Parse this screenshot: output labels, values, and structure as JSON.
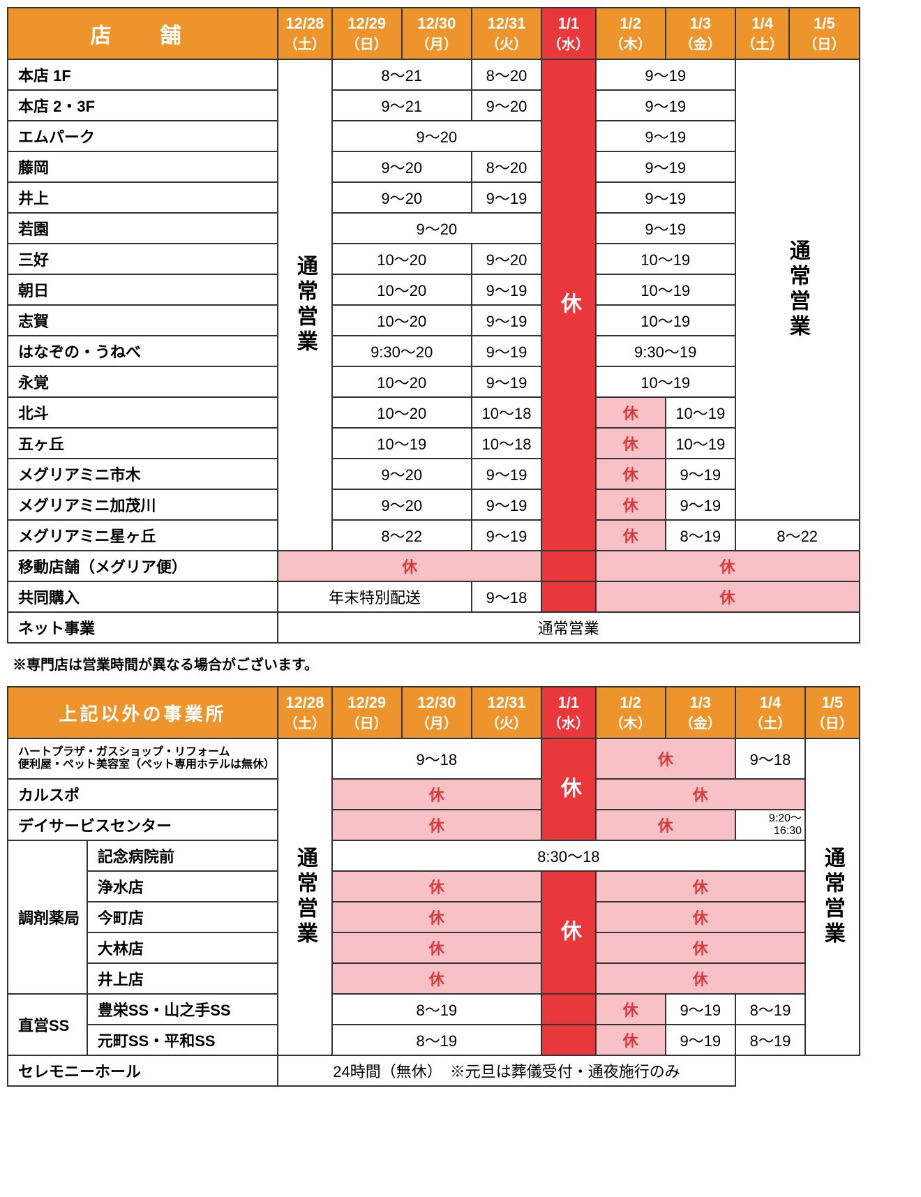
{
  "colors": {
    "header_bg": "#ee942d",
    "header_red": "#e9383b",
    "pink_bg": "#f7c1c5",
    "pink_text": "#d83a3d",
    "border": "#333333",
    "text": "#000000",
    "header_text": "#ffffff"
  },
  "dates": [
    {
      "d": "12/28",
      "w": "（土）",
      "red": false
    },
    {
      "d": "12/29",
      "w": "（日）",
      "red": false
    },
    {
      "d": "12/30",
      "w": "（月）",
      "red": false
    },
    {
      "d": "12/31",
      "w": "（火）",
      "red": false
    },
    {
      "d": "1/1",
      "w": "（水）",
      "red": true
    },
    {
      "d": "1/2",
      "w": "（木）",
      "red": false
    },
    {
      "d": "1/3",
      "w": "（金）",
      "red": false
    },
    {
      "d": "1/4",
      "w": "（土）",
      "red": false
    },
    {
      "d": "1/5",
      "w": "（日）",
      "red": false
    }
  ],
  "table1": {
    "title": "店　舗",
    "vertical_1228": "通常営業",
    "vertical_0104": "通常営業",
    "holiday": "休",
    "rows": [
      {
        "name": "本店 1F",
        "cells": [
          "8～21",
          "",
          "8～20",
          "",
          "9～19",
          "9～19"
        ]
      },
      {
        "name": "本店 2・3F",
        "cells": [
          "9～21",
          "",
          "9～20",
          "",
          "9～19",
          "9～19"
        ]
      },
      {
        "name": "エムパーク",
        "cells": [
          "9～20",
          "9～20",
          "9～20",
          "",
          "9～19",
          "9～19"
        ]
      },
      {
        "name": "藤岡",
        "cells": [
          "9～20",
          "",
          "8～20",
          "",
          "9～19",
          "9～19"
        ]
      },
      {
        "name": "井上",
        "cells": [
          "9～20",
          "",
          "9～19",
          "",
          "9～19",
          "9～19"
        ]
      },
      {
        "name": "若園",
        "cells": [
          "9～20",
          "9～20",
          "9～20",
          "",
          "9～19",
          "9～19"
        ]
      },
      {
        "name": "三好",
        "cells": [
          "10～20",
          "",
          "9～20",
          "",
          "10～19",
          "10～19"
        ]
      },
      {
        "name": "朝日",
        "cells": [
          "10～20",
          "",
          "9～19",
          "",
          "10～19",
          "10～19"
        ]
      },
      {
        "name": "志賀",
        "cells": [
          "10～20",
          "",
          "9～19",
          "",
          "10～19",
          "10～19"
        ]
      },
      {
        "name": "はなぞの・うねべ",
        "cells": [
          "9:30～20",
          "",
          "9～19",
          "",
          "9:30～19",
          "9:30～19"
        ]
      },
      {
        "name": "永覚",
        "cells": [
          "10～20",
          "",
          "9～19",
          "",
          "10～19",
          "10～19"
        ]
      },
      {
        "name": "北斗",
        "cells": [
          "10～20",
          "",
          "10～18",
          "",
          "休",
          "10～19"
        ]
      },
      {
        "name": "五ヶ丘",
        "cells": [
          "10～19",
          "",
          "10～18",
          "",
          "休",
          "10～19"
        ]
      },
      {
        "name": "メグリアミニ市木",
        "cells": [
          "9～20",
          "",
          "9～19",
          "",
          "休",
          "9～19"
        ]
      },
      {
        "name": "メグリアミニ加茂川",
        "cells": [
          "9～20",
          "",
          "9～19",
          "",
          "休",
          "9～19"
        ]
      },
      {
        "name": "メグリアミニ星ヶ丘",
        "cells": [
          "8～22",
          "",
          "9～19",
          "",
          "休",
          "8～19",
          "8～22",
          "8～22"
        ]
      }
    ],
    "mobile": {
      "name": "移動店舗（メグリア便）",
      "left": "休",
      "right": "休"
    },
    "kyodo": {
      "name": "共同購入",
      "left": "年末特別配送",
      "mid": "9～18",
      "right": "休"
    },
    "net": {
      "name": "ネット事業",
      "val": "通常営業"
    }
  },
  "note1": "※専門店は営業時間が異なる場合がございます。",
  "table2": {
    "title": "上記以外の事業所",
    "vertical_1228": "通常営業",
    "vertical_0105": "通常営業",
    "holiday": "休",
    "r1": {
      "name": "ハートプラザ・ガスショップ・リフォーム",
      "name2": "便利屋・ペット美容室（ペット専用ホテルは無休）",
      "left": "9～18",
      "right": "休",
      "r14": "9～18"
    },
    "r2": {
      "name": "カルスポ",
      "left": "休",
      "right": "休"
    },
    "r3": {
      "name": "デイサービスセンター",
      "left": "休",
      "right": "休",
      "r14": "9:20～16:30"
    },
    "pharm_group": "調剤薬局",
    "pharm": [
      {
        "name": "記念病院前",
        "full": "8:30～18"
      },
      {
        "name": "浄水店",
        "left": "休",
        "right": "休"
      },
      {
        "name": "今町店",
        "left": "休",
        "right": "休"
      },
      {
        "name": "大林店",
        "left": "休",
        "right": "休"
      },
      {
        "name": "井上店",
        "left": "休",
        "right": "休"
      }
    ],
    "ss_group": "直営SS",
    "ss": [
      {
        "name": "豊栄SS・山之手SS",
        "left": "8～19",
        "c2": "休",
        "c3": "9～19",
        "c4": "8～19"
      },
      {
        "name": "元町SS・平和SS",
        "left": "8～19",
        "c2": "休",
        "c3": "9～19",
        "c4": "8～19"
      }
    ],
    "ceremony": {
      "name": "セレモニーホール",
      "val": "24時間（無休）　※元旦は葬儀受付・通夜施行のみ"
    }
  }
}
